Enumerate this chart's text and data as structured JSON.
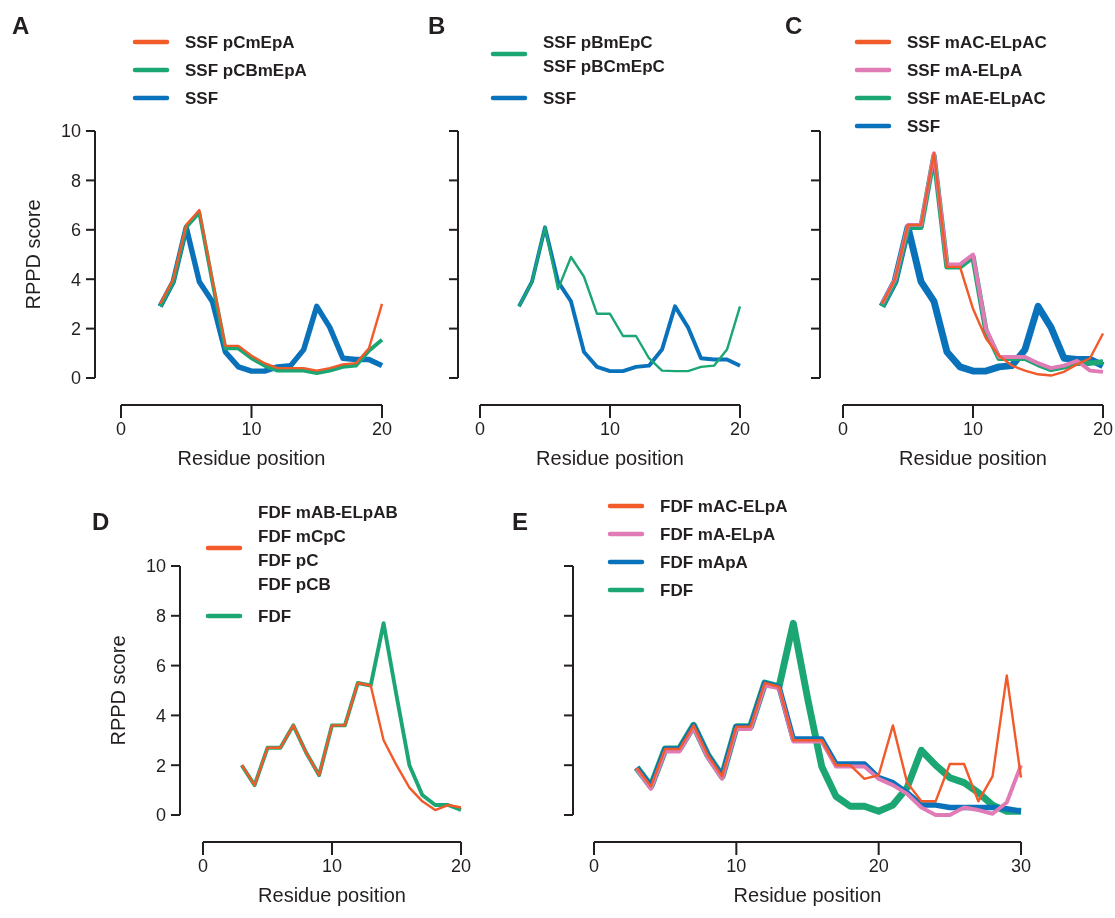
{
  "chart_data": [
    {
      "type": "line",
      "title": "A",
      "xlabel": "Residue position",
      "ylabel": "RPPD score",
      "x": [
        3,
        4,
        5,
        6,
        7,
        8,
        9,
        10,
        11,
        12,
        13,
        14,
        15,
        16,
        17,
        18,
        19,
        20
      ],
      "xlim": [
        0,
        20
      ],
      "xticks": [
        0,
        10,
        20
      ],
      "ylim": [
        0,
        10
      ],
      "yticks": [
        0,
        2,
        4,
        6,
        8,
        10
      ],
      "legend": "top left",
      "grid": false,
      "marker": "none",
      "line_style": "solid",
      "series": [
        {
          "name": "SSF pCmEpA",
          "color": "#f15a29",
          "values": [
            3.0,
            4.0,
            6.2,
            6.8,
            4.0,
            1.3,
            1.3,
            0.9,
            0.6,
            0.4,
            0.4,
            0.4,
            0.3,
            0.4,
            0.55,
            0.6,
            1.2,
            3.0
          ]
        },
        {
          "name": "SSF pCBmEpA",
          "color": "#1ba673",
          "values": [
            2.9,
            3.9,
            6.1,
            6.7,
            3.9,
            1.2,
            1.2,
            0.8,
            0.5,
            0.3,
            0.3,
            0.3,
            0.2,
            0.3,
            0.45,
            0.5,
            1.1,
            1.55
          ]
        },
        {
          "name": "SSF",
          "color": "#0a72ba",
          "values": [
            2.9,
            3.9,
            6.1,
            3.9,
            3.1,
            1.05,
            0.45,
            0.28,
            0.28,
            0.45,
            0.5,
            1.15,
            2.9,
            2.05,
            0.8,
            0.75,
            0.75,
            0.5
          ]
        }
      ]
    },
    {
      "type": "line",
      "title": "B",
      "xlabel": "Residue position",
      "x": [
        3,
        4,
        5,
        6,
        7,
        8,
        9,
        10,
        11,
        12,
        13,
        14,
        15,
        16,
        17,
        18,
        19,
        20
      ],
      "xlim": [
        0,
        20
      ],
      "xticks": [
        0,
        10,
        20
      ],
      "ylim": [
        0,
        10
      ],
      "yticks": [
        0,
        2,
        4,
        6,
        8,
        10
      ],
      "tick_labels": "x",
      "legend": "top left",
      "grid": false,
      "marker": "none",
      "line_style": "solid",
      "series": [
        {
          "name": "SSF pBmEpC\nSSF pBCmEpC",
          "color": "#1ba673",
          "values": [
            2.9,
            3.9,
            6.1,
            3.6,
            4.9,
            4.1,
            2.6,
            2.6,
            1.7,
            1.7,
            0.8,
            0.3,
            0.28,
            0.28,
            0.45,
            0.5,
            1.15,
            2.9
          ]
        },
        {
          "name": "SSF",
          "color": "#0a72ba",
          "values": [
            2.9,
            3.9,
            6.1,
            3.9,
            3.1,
            1.05,
            0.45,
            0.28,
            0.28,
            0.45,
            0.5,
            1.15,
            2.9,
            2.05,
            0.8,
            0.75,
            0.75,
            0.5
          ]
        }
      ]
    },
    {
      "type": "line",
      "title": "C",
      "xlabel": "Residue position",
      "x": [
        3,
        4,
        5,
        6,
        7,
        8,
        9,
        10,
        11,
        12,
        13,
        14,
        15,
        16,
        17,
        18,
        19,
        20
      ],
      "xlim": [
        0,
        20
      ],
      "xticks": [
        0,
        10,
        20
      ],
      "ylim": [
        0,
        10
      ],
      "yticks": [
        0,
        2,
        4,
        6,
        8,
        10
      ],
      "tick_labels": "x",
      "legend": "top left",
      "grid": false,
      "marker": "none",
      "line_style": "solid",
      "series": [
        {
          "name": "SSF mAC-ELpAC",
          "color": "#f15a29",
          "values": [
            3.0,
            4.0,
            6.2,
            6.2,
            9.1,
            4.5,
            4.5,
            2.8,
            1.6,
            0.9,
            0.5,
            0.3,
            0.15,
            0.1,
            0.25,
            0.55,
            0.8,
            1.8
          ]
        },
        {
          "name": "SSF mA-ELpA",
          "color": "#e07bb5",
          "values": [
            3.0,
            4.0,
            6.2,
            6.2,
            9.1,
            4.6,
            4.6,
            5.0,
            2.0,
            0.85,
            0.85,
            0.85,
            0.6,
            0.4,
            0.5,
            0.7,
            0.3,
            0.25
          ]
        },
        {
          "name": "SSF mAE-ELpAC",
          "color": "#1ba673",
          "values": [
            2.9,
            3.9,
            6.1,
            6.1,
            9.0,
            4.5,
            4.5,
            4.9,
            1.9,
            0.8,
            0.8,
            0.8,
            0.55,
            0.35,
            0.45,
            0.6,
            0.6,
            0.65
          ]
        },
        {
          "name": "SSF",
          "color": "#0a72ba",
          "values": [
            2.9,
            3.9,
            6.1,
            3.9,
            3.1,
            1.05,
            0.45,
            0.28,
            0.28,
            0.45,
            0.5,
            1.15,
            2.9,
            2.05,
            0.8,
            0.75,
            0.75,
            0.5
          ]
        }
      ]
    },
    {
      "type": "line",
      "title": "D",
      "xlabel": "Residue position",
      "ylabel": "RPPD score",
      "x": [
        3,
        4,
        5,
        6,
        7,
        8,
        9,
        10,
        11,
        12,
        13,
        14,
        15,
        16,
        17,
        18,
        19,
        20
      ],
      "xlim": [
        0,
        20
      ],
      "xticks": [
        0,
        10,
        20
      ],
      "ylim": [
        0,
        10
      ],
      "yticks": [
        0,
        2,
        4,
        6,
        8,
        10
      ],
      "legend": "top left",
      "grid": false,
      "marker": "none",
      "line_style": "solid",
      "series": [
        {
          "name": "FDF mAB-ELpAB\nFDF mCpC\nFDF pC\nFDF pCB",
          "color": "#f15a29",
          "values": [
            2.0,
            1.2,
            2.7,
            2.7,
            3.6,
            2.5,
            1.6,
            3.6,
            3.6,
            5.3,
            5.2,
            3.0,
            2.0,
            1.1,
            0.55,
            0.2,
            0.4,
            0.3
          ]
        },
        {
          "name": "FDF",
          "color": "#1ba673",
          "values": [
            2.0,
            1.2,
            2.7,
            2.7,
            3.6,
            2.5,
            1.6,
            3.6,
            3.6,
            5.3,
            5.2,
            7.7,
            4.8,
            2.0,
            0.8,
            0.4,
            0.4,
            0.2
          ]
        }
      ]
    },
    {
      "type": "line",
      "title": "E",
      "xlabel": "Residue position",
      "x": [
        3,
        4,
        5,
        6,
        7,
        8,
        9,
        10,
        11,
        12,
        13,
        14,
        15,
        16,
        17,
        18,
        19,
        20,
        21,
        22,
        23,
        24,
        25,
        26,
        27,
        28,
        29,
        30
      ],
      "xlim": [
        0,
        30
      ],
      "xticks": [
        0,
        10,
        20,
        30
      ],
      "ylim": [
        0,
        10
      ],
      "yticks": [
        0,
        2,
        4,
        6,
        8,
        10
      ],
      "tick_labels": "x",
      "legend": "top left",
      "grid": false,
      "marker": "none",
      "line_style": "solid",
      "series": [
        {
          "name": "FDF mAC-ELpA",
          "color": "#f15a29",
          "values": [
            1.9,
            1.15,
            2.65,
            2.65,
            3.6,
            2.4,
            1.55,
            3.55,
            3.55,
            5.3,
            5.15,
            3.0,
            3.0,
            3.0,
            2.0,
            2.0,
            1.45,
            1.6,
            3.6,
            1.3,
            0.55,
            0.55,
            2.05,
            2.05,
            0.55,
            1.55,
            5.6,
            1.5
          ]
        },
        {
          "name": "FDF mA-ELpA",
          "color": "#e07bb5",
          "values": [
            1.85,
            1.05,
            2.55,
            2.55,
            3.5,
            2.3,
            1.45,
            3.45,
            3.45,
            5.2,
            5.1,
            2.95,
            2.95,
            2.95,
            1.95,
            1.95,
            1.95,
            1.45,
            1.2,
            0.85,
            0.3,
            0.0,
            0.0,
            0.3,
            0.2,
            0.05,
            0.5,
            2.0
          ]
        },
        {
          "name": "FDF mApA",
          "color": "#0a72ba",
          "values": [
            1.9,
            1.15,
            2.65,
            2.65,
            3.6,
            2.4,
            1.55,
            3.55,
            3.55,
            5.3,
            5.15,
            3.05,
            3.05,
            3.05,
            2.05,
            2.05,
            2.05,
            1.5,
            1.3,
            0.9,
            0.4,
            0.4,
            0.3,
            0.3,
            0.3,
            0.3,
            0.25,
            0.15
          ]
        },
        {
          "name": "FDF",
          "color": "#1ba673",
          "values": [
            1.9,
            1.15,
            2.65,
            2.65,
            3.6,
            2.4,
            1.55,
            3.55,
            3.55,
            5.3,
            5.15,
            7.7,
            4.7,
            1.95,
            0.75,
            0.35,
            0.35,
            0.15,
            0.4,
            1.1,
            2.6,
            2.0,
            1.5,
            1.3,
            0.9,
            0.4,
            0.15,
            0.15
          ]
        }
      ]
    }
  ]
}
